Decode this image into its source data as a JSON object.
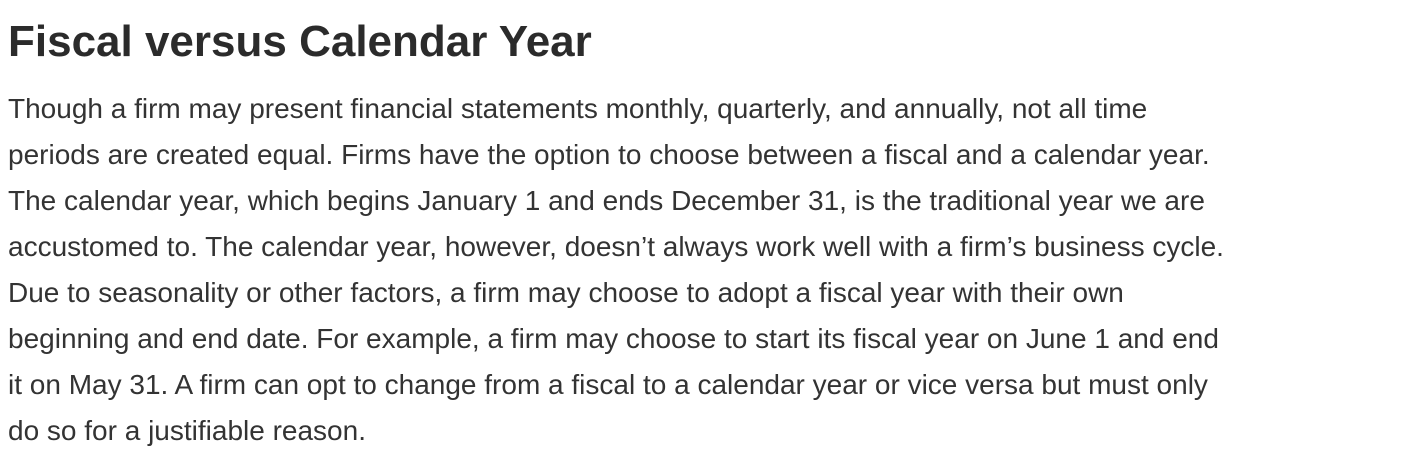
{
  "section": {
    "title": "Fiscal versus Calendar Year",
    "lines": [
      "Though a firm may present financial statements monthly, quarterly, and annually, not all time",
      "periods are created equal. Firms have the option to choose between a fiscal and a calendar year.",
      "The calendar year, which begins January 1 and ends December 31, is the traditional year we are",
      "accustomed to. The calendar year, however, doesn’t always work well with a firm’s business cycle.",
      "Due to seasonality or other factors, a firm may choose to adopt a fiscal year with their own",
      "beginning and end date. For example, a firm may choose to start its fiscal year on June 1 and end",
      "it on May 31. A firm can opt to change from a fiscal to a calendar year or vice versa but must only",
      "do so for a justifiable reason."
    ]
  }
}
